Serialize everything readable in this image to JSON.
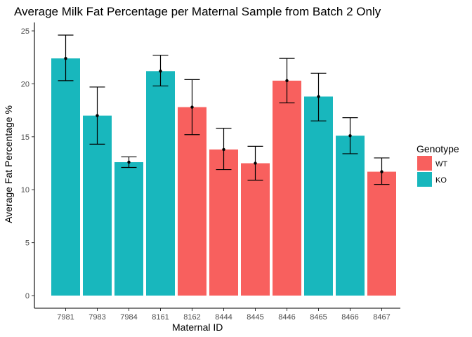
{
  "chart_data": {
    "type": "bar",
    "title": "Average Milk Fat Percentage per Maternal Sample from Batch 2 Only",
    "xlabel": "Maternal ID",
    "ylabel": "Average Fat Percentage %",
    "ylim": [
      0,
      25
    ],
    "yticks": [
      "0",
      "5",
      "10",
      "15",
      "20",
      "25"
    ],
    "categories": [
      "7981",
      "7983",
      "7984",
      "8161",
      "8162",
      "8444",
      "8445",
      "8446",
      "8465",
      "8466",
      "8467"
    ],
    "values": [
      22.4,
      17.0,
      12.6,
      21.2,
      17.8,
      13.8,
      12.5,
      20.3,
      18.8,
      15.1,
      11.7
    ],
    "genotype": [
      "KO",
      "KO",
      "KO",
      "KO",
      "WT",
      "WT",
      "WT",
      "WT",
      "KO",
      "KO",
      "WT"
    ],
    "error_low": [
      20.3,
      14.3,
      12.1,
      19.8,
      15.2,
      11.9,
      10.9,
      18.2,
      16.5,
      13.4,
      10.5
    ],
    "error_high": [
      24.6,
      19.7,
      13.1,
      22.7,
      20.4,
      15.8,
      14.1,
      22.4,
      21.0,
      16.8,
      13.0
    ],
    "legend": {
      "title": "Genotype",
      "position": "right",
      "entries": [
        {
          "name": "WT",
          "color": "#f8605e"
        },
        {
          "name": "KO",
          "color": "#18b7bd"
        }
      ]
    },
    "grid": false
  }
}
